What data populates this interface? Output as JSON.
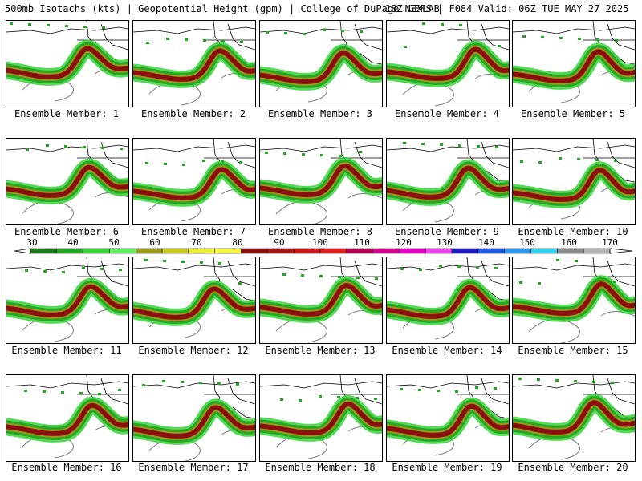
{
  "header": {
    "left": "500mb Isotachs (kts) | Geopotential Height (gpm) | College of DuPage NEXLAB",
    "right": "18Z GEFS | F084 Valid: 06Z TUE MAY 27 2025"
  },
  "panels": [
    {
      "label": "Ensemble Member: 1"
    },
    {
      "label": "Ensemble Member: 2"
    },
    {
      "label": "Ensemble Member: 3"
    },
    {
      "label": "Ensemble Member: 4"
    },
    {
      "label": "Ensemble Member: 5"
    },
    {
      "label": "Ensemble Member: 6"
    },
    {
      "label": "Ensemble Member: 7"
    },
    {
      "label": "Ensemble Member: 8"
    },
    {
      "label": "Ensemble Member: 9"
    },
    {
      "label": "Ensemble Member: 10"
    },
    {
      "label": "Ensemble Member: 11"
    },
    {
      "label": "Ensemble Member: 12"
    },
    {
      "label": "Ensemble Member: 13"
    },
    {
      "label": "Ensemble Member: 14"
    },
    {
      "label": "Ensemble Member: 15"
    },
    {
      "label": "Ensemble Member: 16"
    },
    {
      "label": "Ensemble Member: 17"
    },
    {
      "label": "Ensemble Member: 18"
    },
    {
      "label": "Ensemble Member: 19"
    },
    {
      "label": "Ensemble Member: 20"
    }
  ],
  "colorbar": {
    "ticks": [
      "30",
      "40",
      "50",
      "60",
      "70",
      "80",
      "90",
      "100",
      "110",
      "120",
      "130",
      "140",
      "150",
      "160",
      "170"
    ],
    "colors": [
      "#1a7a1a",
      "#24a824",
      "#39d439",
      "#5ef05e",
      "#9a9a1a",
      "#c8c81e",
      "#eeee30",
      "#f6f640",
      "#8a0f0f",
      "#a81414",
      "#c81a1a",
      "#e01e1e",
      "#b00050",
      "#d2008c",
      "#e600c8",
      "#f040f0",
      "#1c1cc0",
      "#1e5ae6",
      "#2f96f0",
      "#30d2f0",
      "#8a8a8a",
      "#b4b4b4"
    ]
  },
  "colors": {
    "jet_core": "#8a0f0f",
    "jet_mid": "#9a9a1a",
    "jet_edge": "#24a824",
    "jet_fringe": "#39d439",
    "height_contour": "#7a7a7a",
    "boundaries": "#000000"
  }
}
